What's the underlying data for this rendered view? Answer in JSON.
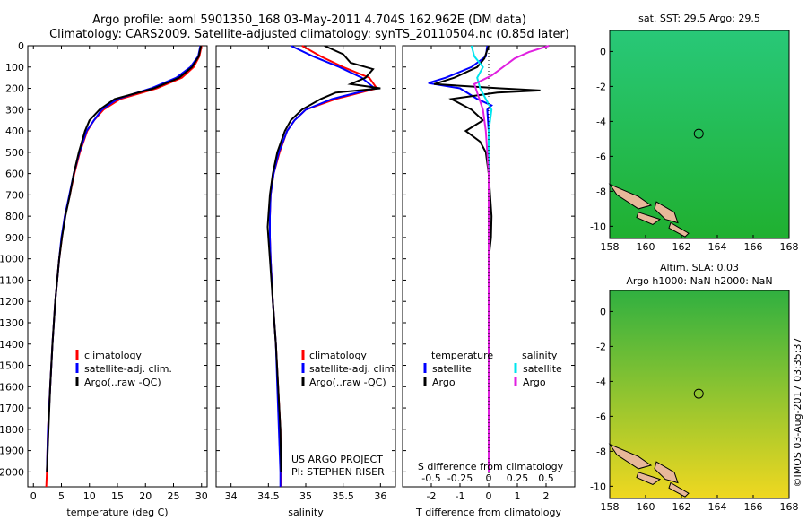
{
  "header": {
    "line1": "Argo profile: aoml 5901350_168 03-May-2011 4.704S 162.962E (DM data)",
    "line2": "Climatology: CARS2009. Satellite-adjusted climatology: synTS_20110504.nc (0.85d later)"
  },
  "colors": {
    "climatology": "#ff0000",
    "satellite": "#0000ff",
    "argo": "#000000",
    "sat_salinity": "#00e5ee",
    "argo_salinity": "#e020e0",
    "land": "#e8b89a"
  },
  "chart_data": [
    {
      "type": "line",
      "id": "temperature",
      "xlabel": "temperature (deg C)",
      "ylabel": "",
      "xlim": [
        -1,
        31
      ],
      "ylim": [
        2070,
        0
      ],
      "xticks": [
        0,
        5,
        10,
        15,
        20,
        25,
        30
      ],
      "xtick_labels": [
        "0",
        "5",
        "10",
        "15",
        "20",
        "25",
        "30"
      ],
      "yticks": [
        0,
        100,
        200,
        300,
        400,
        500,
        600,
        700,
        800,
        900,
        1000,
        1100,
        1200,
        1300,
        1400,
        1500,
        1600,
        1700,
        1800,
        1900,
        2000
      ],
      "ytick_labels": [
        "0",
        "100",
        "200",
        "300",
        "400",
        "500",
        "600",
        "700",
        "800",
        "900",
        "1000",
        "1100",
        "1200",
        "1300",
        "1400",
        "1500",
        "1600",
        "1700",
        "1800",
        "1900",
        "2000"
      ],
      "legend": {
        "placement": "lower-center",
        "entries": [
          "climatology",
          "satellite-adj. clim.",
          "Argo(..raw -QC)"
        ]
      },
      "series": [
        {
          "name": "climatology",
          "color": "#ff0000",
          "depth": [
            0,
            50,
            100,
            150,
            200,
            250,
            300,
            350,
            400,
            500,
            600,
            700,
            800,
            900,
            1000,
            1200,
            1400,
            1600,
            1800,
            2000,
            2070
          ],
          "values": [
            30.0,
            29.6,
            28.6,
            26.5,
            22.0,
            15.5,
            12.5,
            10.8,
            9.6,
            8.3,
            7.3,
            6.5,
            5.6,
            5.1,
            4.6,
            3.9,
            3.4,
            3.0,
            2.6,
            2.4,
            2.3
          ]
        },
        {
          "name": "satellite-adj. clim.",
          "color": "#0000ff",
          "depth": [
            0,
            50,
            100,
            150,
            200,
            250,
            300,
            350,
            400,
            500,
            600,
            700,
            800,
            900,
            1000,
            1200,
            1400,
            1600,
            1800,
            2000
          ],
          "values": [
            29.8,
            29.4,
            28.0,
            25.5,
            21.0,
            15.0,
            12.2,
            10.8,
            9.5,
            8.2,
            7.2,
            6.4,
            5.6,
            5.0,
            4.6,
            3.9,
            3.4,
            3.0,
            2.6,
            2.4
          ]
        },
        {
          "name": "Argo(..raw -QC)",
          "color": "#000000",
          "depth": [
            0,
            50,
            100,
            150,
            200,
            250,
            300,
            350,
            400,
            500,
            600,
            700,
            800,
            900,
            1000,
            1200,
            1400,
            1600,
            1800,
            2000
          ],
          "values": [
            29.9,
            29.5,
            28.3,
            26.0,
            21.5,
            14.5,
            11.8,
            10.0,
            9.2,
            8.1,
            7.2,
            6.5,
            5.7,
            5.1,
            4.6,
            3.9,
            3.4,
            3.0,
            2.7,
            2.4
          ]
        }
      ]
    },
    {
      "type": "line",
      "id": "salinity",
      "xlabel": "salinity",
      "ylabel": "",
      "xlim": [
        33.8,
        36.2
      ],
      "ylim": [
        2070,
        0
      ],
      "xticks": [
        34,
        34.5,
        35,
        35.5,
        36
      ],
      "xtick_labels": [
        "34",
        "34.5",
        "35",
        "35.5",
        "36"
      ],
      "legend": {
        "placement": "lower-center",
        "entries": [
          "climatology",
          "satellite-adj. clim.",
          "Argo(..raw -QC)"
        ]
      },
      "annotations": [
        "US ARGO PROJECT",
        "PI: STEPHEN RISER"
      ],
      "series": [
        {
          "name": "climatology",
          "color": "#ff0000",
          "depth": [
            0,
            50,
            100,
            150,
            200,
            250,
            300,
            350,
            400,
            500,
            600,
            700,
            800,
            900,
            1000,
            1200,
            1400,
            1600,
            1800,
            2000,
            2070
          ],
          "values": [
            34.95,
            35.2,
            35.5,
            35.85,
            35.95,
            35.4,
            35.0,
            34.85,
            34.75,
            34.65,
            34.57,
            34.53,
            34.52,
            34.52,
            34.53,
            34.56,
            34.6,
            34.63,
            34.66,
            34.67,
            34.67
          ]
        },
        {
          "name": "satellite-adj. clim.",
          "color": "#0000ff",
          "depth": [
            0,
            50,
            100,
            150,
            200,
            250,
            300,
            350,
            400,
            500,
            600,
            700,
            800,
            900,
            1000,
            1200,
            1400,
            1600,
            1800,
            2000,
            2070
          ],
          "values": [
            34.8,
            35.1,
            35.45,
            35.75,
            35.92,
            35.35,
            35.0,
            34.85,
            34.75,
            34.64,
            34.57,
            34.53,
            34.52,
            34.52,
            34.53,
            34.56,
            34.6,
            34.62,
            34.64,
            34.66,
            34.66
          ]
        },
        {
          "name": "Argo(..raw -QC)",
          "color": "#000000",
          "depth": [
            0,
            40,
            80,
            110,
            150,
            180,
            200,
            220,
            250,
            300,
            350,
            400,
            500,
            600,
            700,
            800,
            850,
            900,
            1000,
            1200,
            1400,
            1600,
            1800,
            2000
          ],
          "values": [
            35.25,
            35.5,
            35.6,
            35.9,
            35.8,
            35.6,
            36.0,
            35.4,
            35.2,
            34.95,
            34.8,
            34.72,
            34.62,
            34.56,
            34.52,
            34.5,
            34.49,
            34.5,
            34.52,
            34.56,
            34.6,
            34.63,
            34.66,
            34.67
          ]
        }
      ]
    },
    {
      "type": "line",
      "id": "difference",
      "xlabel": "T difference from climatology",
      "xlabel_top": "S difference from climatology",
      "xlim": [
        -3,
        3
      ],
      "ylim": [
        2070,
        0
      ],
      "xticks": [
        -2,
        -1,
        0,
        1,
        2
      ],
      "xtick_labels": [
        "-2",
        "-1",
        "0",
        "1",
        "2"
      ],
      "xticks_top_labels": [
        "-0.5",
        "-0.25",
        "0",
        "0.25",
        "0.5"
      ],
      "legend": {
        "placement": "lower-center",
        "temperature_heading": "temperature",
        "salinity_heading": "salinity",
        "entries": [
          "satellite",
          "Argo",
          "satellite",
          "Argo"
        ]
      },
      "series": [
        {
          "name": "satellite",
          "color": "#0000ff",
          "depth": [
            0,
            50,
            100,
            150,
            175,
            200,
            250,
            280,
            300,
            400,
            500,
            600,
            700,
            800,
            1000,
            1200,
            1400,
            1600,
            1800,
            2000
          ],
          "values": [
            -0.05,
            -0.1,
            -0.6,
            -1.5,
            -2.1,
            -1.0,
            -0.4,
            0.1,
            -0.05,
            0.0,
            0.0,
            0.0,
            0.0,
            0.0,
            0.0,
            0.0,
            0.0,
            0.0,
            0.0,
            0.0
          ]
        },
        {
          "name": "Argo",
          "color": "#000000",
          "depth": [
            0,
            60,
            100,
            150,
            180,
            200,
            210,
            220,
            250,
            300,
            350,
            400,
            450,
            500,
            600,
            700,
            800,
            900,
            1000,
            1200,
            1400,
            1600,
            1800,
            2000
          ],
          "values": [
            0.0,
            -0.15,
            -0.4,
            -1.2,
            -1.9,
            0.4,
            1.8,
            0.3,
            -1.3,
            -0.6,
            -0.2,
            -0.8,
            -0.3,
            -0.1,
            0.0,
            0.05,
            0.1,
            0.08,
            0.0,
            0.0,
            0.0,
            0.0,
            0.0,
            0.0
          ]
        },
        {
          "name": "satellite",
          "color": "#00e5ee",
          "depth": [
            0,
            50,
            100,
            150,
            200,
            250,
            300,
            400,
            500,
            700,
            1000,
            1400,
            2000
          ],
          "values": [
            -0.6,
            -0.5,
            -0.2,
            -0.4,
            -0.3,
            -0.1,
            0.1,
            0.0,
            0.0,
            0.0,
            0.0,
            0.0,
            0.0
          ]
        },
        {
          "name": "Argo",
          "color": "#e020e0",
          "depth": [
            0,
            30,
            60,
            100,
            140,
            180,
            220,
            260,
            300,
            400,
            600,
            800,
            1000,
            1400,
            2000
          ],
          "values": [
            2.1,
            1.4,
            0.9,
            0.5,
            0.1,
            -0.5,
            -0.4,
            -0.3,
            -0.2,
            -0.1,
            0.0,
            0.0,
            0.0,
            0.0,
            0.0
          ]
        }
      ]
    },
    {
      "type": "heatmap",
      "id": "sst-map",
      "title": "sat. SST: 29.5 Argo: 29.5",
      "xlim": [
        158,
        168
      ],
      "ylim": [
        -10.7,
        1.2
      ],
      "xticks": [
        158,
        160,
        162,
        164,
        166,
        168
      ],
      "xtick_labels": [
        "158",
        "160",
        "162",
        "164",
        "166",
        "168"
      ],
      "yticks": [
        0,
        -2,
        -4,
        -6,
        -8,
        -10
      ],
      "ytick_labels": [
        "0",
        "-2",
        "-4",
        "-6",
        "-8",
        "-10"
      ],
      "profile_location": {
        "lon": 162.962,
        "lat": -4.704
      },
      "colors": {
        "top": "#28c878",
        "bottom": "#20b030"
      }
    },
    {
      "type": "heatmap",
      "id": "sla-map",
      "title": "Altim. SLA: 0.03",
      "subtitle": "Argo h1000: NaN h2000: NaN",
      "xlim": [
        158,
        168
      ],
      "ylim": [
        -10.7,
        1.2
      ],
      "xticks": [
        158,
        160,
        162,
        164,
        166,
        168
      ],
      "xtick_labels": [
        "158",
        "160",
        "162",
        "164",
        "166",
        "168"
      ],
      "yticks": [
        0,
        -2,
        -4,
        -6,
        -8,
        -10
      ],
      "ytick_labels": [
        "0",
        "-2",
        "-4",
        "-6",
        "-8",
        "-10"
      ],
      "profile_location": {
        "lon": 162.962,
        "lat": -4.704
      },
      "colors": {
        "top": "#30b040",
        "bottom": "#f0d820"
      }
    }
  ],
  "credit": "©IMOS 03-Aug-2017 03:35:37"
}
